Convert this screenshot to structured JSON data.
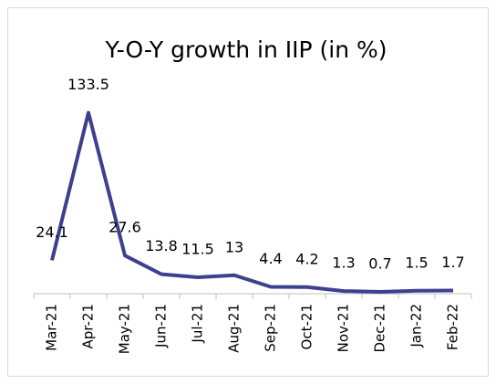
{
  "chart_data": {
    "type": "line",
    "title": "Y-O-Y growth in IIP (in %)",
    "categories": [
      "Mar-21",
      "Apr-21",
      "May-21",
      "Jun-21",
      "Jul-21",
      "Aug-21",
      "Sep-21",
      "Oct-21",
      "Nov-21",
      "Dec-21",
      "Jan-22",
      "Feb-22"
    ],
    "values": [
      24.1,
      133.5,
      27.6,
      13.8,
      11.5,
      13,
      4.4,
      4.2,
      1.3,
      0.7,
      1.5,
      1.7
    ],
    "color": "#3f3f8f",
    "ylim": [
      0,
      140
    ],
    "data_labels": true
  }
}
